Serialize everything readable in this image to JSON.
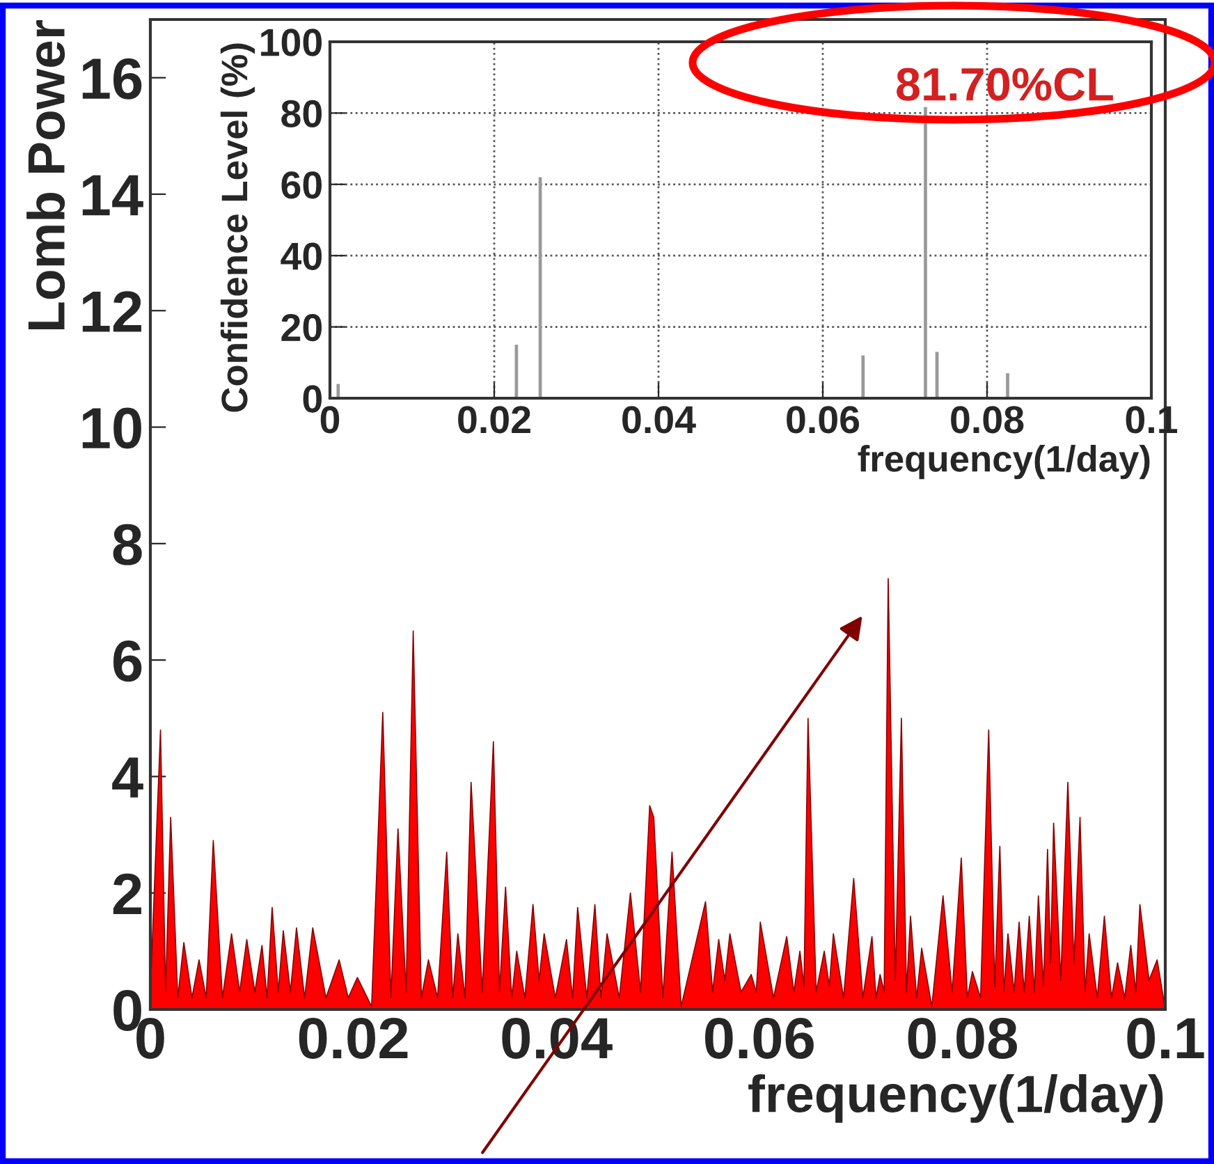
{
  "chart_data": [
    {
      "type": "area",
      "xlabel": "frequency(1/day)",
      "ylabel": "Lomb Power",
      "xlim": [
        0,
        0.1
      ],
      "ylim": [
        0,
        17
      ],
      "xticks": [
        0,
        0.02,
        0.04,
        0.06,
        0.08,
        0.1
      ],
      "yticks": [
        0,
        2,
        4,
        6,
        8,
        10,
        12,
        14,
        16
      ],
      "grid": false,
      "series": [
        {
          "color": "#ff0000",
          "x": [
            0,
            0.001,
            0.0015,
            0.002,
            0.0027,
            0.0033,
            0.0041,
            0.0048,
            0.0055,
            0.0062,
            0.0071,
            0.008,
            0.0088,
            0.0095,
            0.0103,
            0.011,
            0.0115,
            0.012,
            0.0126,
            0.0131,
            0.0138,
            0.0144,
            0.0152,
            0.016,
            0.0173,
            0.0186,
            0.0195,
            0.0204,
            0.0218,
            0.0229,
            0.0237,
            0.0244,
            0.0252,
            0.0259,
            0.0267,
            0.0274,
            0.0283,
            0.0292,
            0.0298,
            0.0303,
            0.031,
            0.0316,
            0.0327,
            0.0338,
            0.0344,
            0.035,
            0.0356,
            0.0361,
            0.0369,
            0.0377,
            0.0383,
            0.0388,
            0.0399,
            0.041,
            0.0416,
            0.0421,
            0.043,
            0.0438,
            0.0444,
            0.045,
            0.0462,
            0.0473,
            0.0483,
            0.0492,
            0.0496,
            0.0505,
            0.0514,
            0.0523,
            0.0547,
            0.0554,
            0.056,
            0.0566,
            0.0571,
            0.0582,
            0.0592,
            0.0597,
            0.0601,
            0.0614,
            0.0627,
            0.0634,
            0.064,
            0.0644,
            0.0648,
            0.0656,
            0.0664,
            0.0669,
            0.0673,
            0.0683,
            0.0693,
            0.0702,
            0.0711,
            0.0715,
            0.0719,
            0.0723,
            0.0727,
            0.0734,
            0.074,
            0.0745,
            0.0749,
            0.0755,
            0.076,
            0.077,
            0.0781,
            0.079,
            0.0799,
            0.0805,
            0.081,
            0.0818,
            0.0826,
            0.0832,
            0.0837,
            0.0841,
            0.0845,
            0.0851,
            0.0856,
            0.0861,
            0.0866,
            0.0871,
            0.0875,
            0.088,
            0.0884,
            0.0887,
            0.089,
            0.0897,
            0.0904,
            0.091,
            0.0916,
            0.0921,
            0.0925,
            0.0933,
            0.094,
            0.0947,
            0.0953,
            0.096,
            0.0966,
            0.0971,
            0.0975,
            0.0984,
            0.0992,
            0.1
          ],
          "values": [
            0.3,
            4.8,
            0.3,
            3.3,
            0.2,
            1.15,
            0.2,
            0.85,
            0.2,
            2.9,
            0.2,
            1.3,
            0.3,
            1.2,
            0.3,
            1.1,
            0.2,
            1.75,
            0.3,
            1.35,
            0.3,
            1.4,
            0.2,
            1.4,
            0.2,
            0.85,
            0.2,
            0.55,
            0.05,
            5.1,
            0.2,
            3.1,
            0.3,
            6.5,
            0.2,
            0.85,
            0.2,
            2.7,
            0.2,
            1.3,
            0.2,
            3.9,
            0.3,
            4.6,
            0.3,
            2.1,
            0.2,
            1.0,
            0.2,
            1.8,
            0.5,
            1.3,
            0.2,
            1.2,
            0.2,
            1.75,
            0.2,
            1.8,
            0.2,
            1.3,
            0.2,
            2.0,
            0.3,
            3.5,
            3.3,
            0.2,
            2.7,
            0.05,
            1.85,
            0.3,
            1.2,
            0.5,
            1.3,
            0.3,
            0.6,
            0.3,
            1.5,
            0.2,
            1.25,
            0.3,
            1.0,
            0.4,
            5.0,
            0.3,
            1.0,
            0.4,
            1.3,
            0.2,
            2.25,
            0.2,
            1.25,
            0.2,
            0.6,
            0.3,
            7.4,
            0.5,
            5.0,
            0.3,
            1.6,
            0.2,
            1.05,
            0.05,
            1.95,
            0.3,
            2.6,
            0.2,
            0.65,
            0.2,
            4.8,
            0.4,
            2.8,
            0.3,
            1.3,
            0.3,
            1.5,
            0.3,
            1.6,
            0.3,
            1.95,
            0.4,
            2.75,
            0.8,
            3.2,
            0.5,
            3.9,
            0.8,
            3.3,
            0.3,
            1.3,
            0.2,
            1.6,
            0.2,
            0.8,
            0.2,
            1.1,
            0.3,
            1.8,
            0.5,
            0.85,
            0
          ]
        }
      ]
    },
    {
      "type": "bar",
      "xlabel": "frequency(1/day)",
      "ylabel": "Confidence Level (%)",
      "xlim": [
        0,
        0.1
      ],
      "ylim": [
        0,
        100
      ],
      "xticks": [
        0,
        0.02,
        0.04,
        0.06,
        0.08,
        0.1
      ],
      "yticks": [
        0,
        20,
        40,
        60,
        80,
        100
      ],
      "grid": true,
      "annotations": [
        "81.70%CL"
      ],
      "series": [
        {
          "color": "#999999",
          "x": [
            0.001,
            0.0227,
            0.0256,
            0.0649,
            0.0725,
            0.0739,
            0.0825
          ],
          "values": [
            4,
            15,
            62,
            12,
            81.7,
            13,
            7
          ]
        }
      ]
    }
  ]
}
